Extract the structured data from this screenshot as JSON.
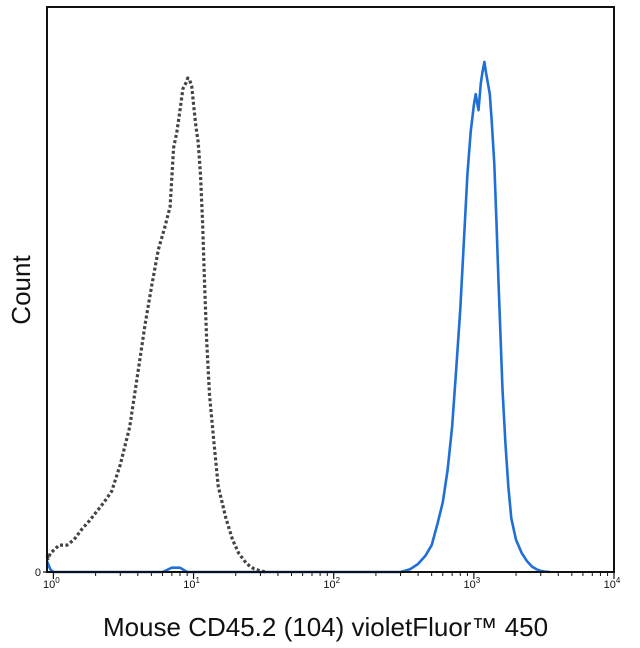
{
  "chart_data": {
    "type": "line",
    "title": "",
    "xlabel": "Mouse CD45.2 (104) violetFluor™ 450",
    "ylabel": "Count",
    "x_scale": "log",
    "xlim": [
      0.9,
      10000
    ],
    "ylim": [
      0,
      100
    ],
    "grid": false,
    "x_ticks": [
      {
        "value": 1,
        "base": "10",
        "exp": "0"
      },
      {
        "value": 10,
        "base": "10",
        "exp": "1"
      },
      {
        "value": 100,
        "base": "10",
        "exp": "2"
      },
      {
        "value": 1000,
        "base": "10",
        "exp": "3"
      },
      {
        "value": 10000,
        "base": "10",
        "exp": "4"
      }
    ],
    "y_ticks": [
      {
        "value": 0,
        "label": "0"
      }
    ],
    "series": [
      {
        "color": "#444444",
        "style": "dotted",
        "x": [
          0.9,
          0.92,
          0.95,
          1.0,
          1.1,
          1.25,
          1.4,
          1.6,
          1.8,
          2.0,
          2.3,
          2.6,
          3.0,
          3.5,
          4.0,
          4.5,
          5.0,
          5.6,
          6.2,
          6.8,
          7.2,
          7.6,
          8.0,
          8.4,
          8.8,
          9.1,
          9.4,
          9.7,
          10.0,
          10.4,
          10.8,
          11.2,
          11.6,
          12.0,
          12.4,
          13.0,
          14.0,
          15.0,
          17.0,
          19.0,
          21.0,
          24.0,
          27.0,
          30.0,
          33.0
        ],
        "y": [
          3,
          2.5,
          3.5,
          4,
          5,
          5,
          6,
          8,
          9.5,
          11,
          13,
          15,
          20,
          27,
          37,
          46,
          53,
          60,
          64,
          68,
          79,
          82,
          86,
          90,
          91,
          92,
          91.5,
          90.5,
          87,
          83,
          80,
          74,
          65,
          53,
          43,
          33,
          24,
          16,
          10,
          6,
          3.5,
          1.5,
          0.6,
          0.2,
          0
        ]
      },
      {
        "color": "#1f6fd6",
        "style": "solid",
        "x": [
          0.9,
          0.95,
          1.0,
          6.0,
          7.0,
          8.0,
          9.0,
          300,
          350,
          400,
          450,
          500,
          550,
          600,
          650,
          700,
          750,
          800,
          850,
          900,
          950,
          1000,
          1030,
          1080,
          1120,
          1150,
          1190,
          1220,
          1260,
          1300,
          1340,
          1400,
          1450,
          1500,
          1550,
          1600,
          1680,
          1760,
          1850,
          2000,
          2200,
          2400,
          2600,
          2800,
          3000,
          3200,
          3500
        ],
        "y": [
          2,
          0.5,
          0,
          0,
          0.8,
          0.8,
          0,
          0,
          0.5,
          1.5,
          3,
          5,
          9,
          13,
          19,
          27,
          38,
          49,
          62,
          74,
          82,
          87,
          89,
          86,
          91,
          93,
          95,
          93,
          91,
          89,
          84,
          76,
          65,
          54,
          44,
          34,
          24,
          16,
          10,
          6,
          3.5,
          2,
          1,
          0.5,
          0.2,
          0.1,
          0
        ]
      }
    ]
  }
}
